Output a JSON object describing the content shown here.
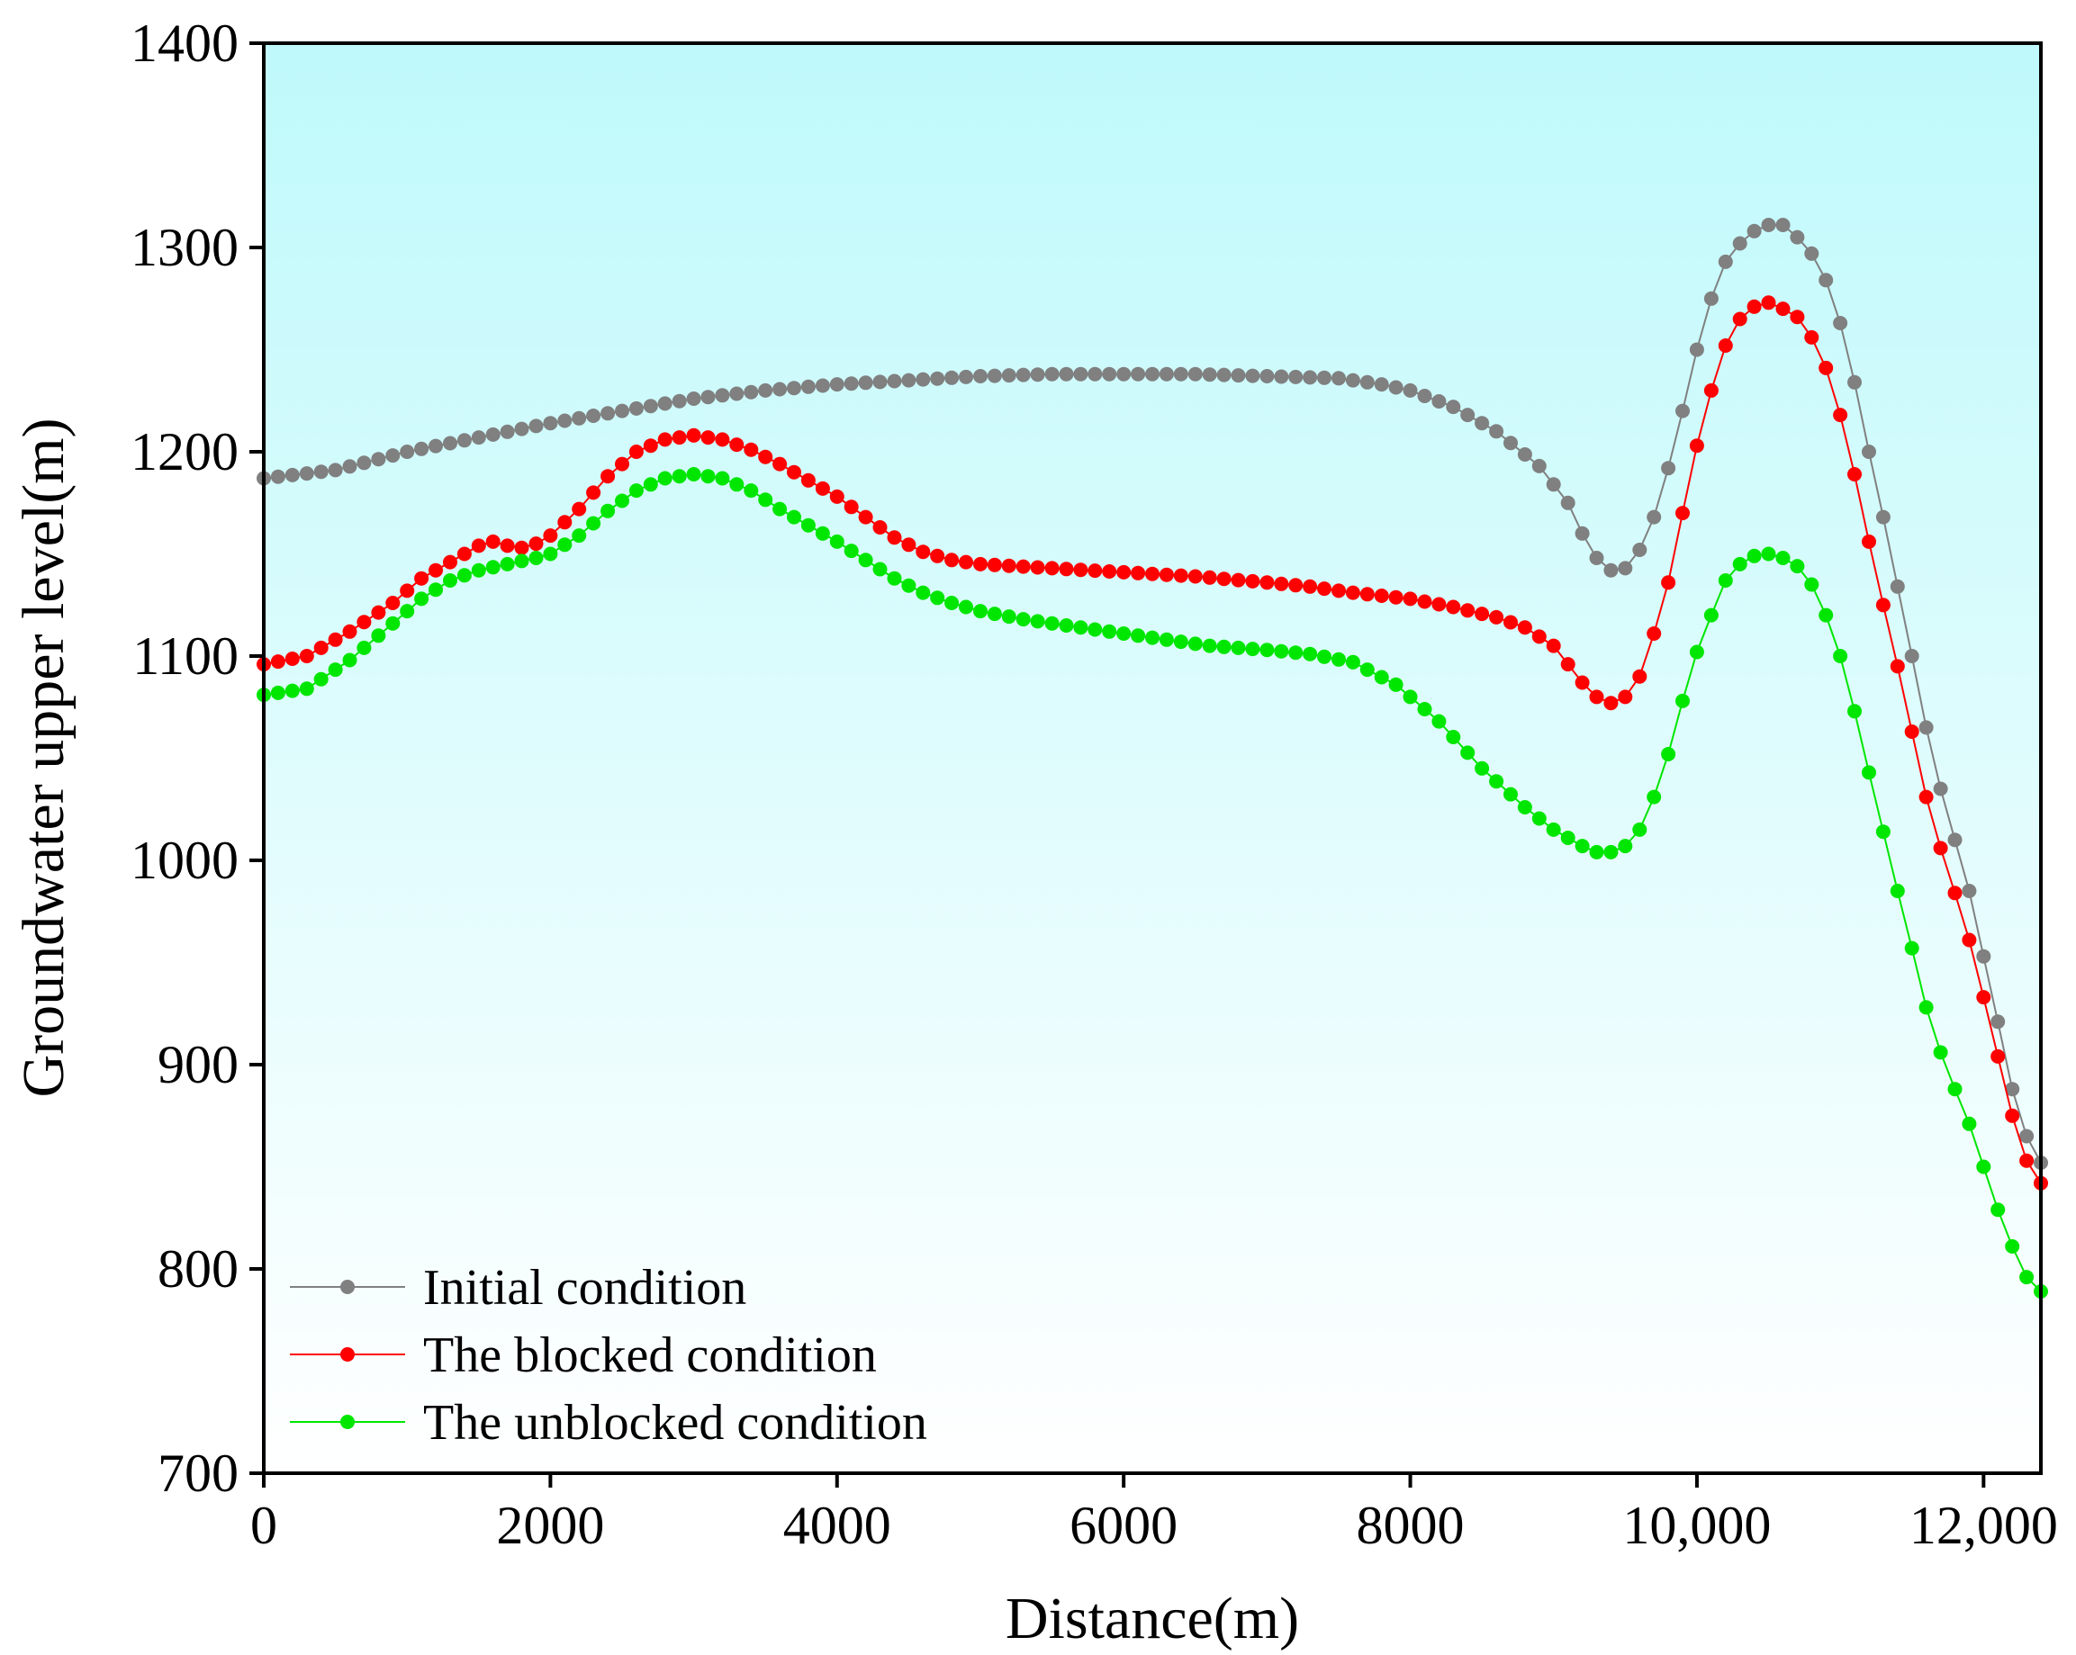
{
  "chart_data": {
    "type": "line",
    "title": "",
    "xlabel": "Distance(m)",
    "ylabel": "Groundwater upper level(m)",
    "xlim": [
      0,
      12400
    ],
    "ylim": [
      700,
      1400
    ],
    "xticks": [
      0,
      2000,
      4000,
      6000,
      8000,
      10000,
      12000
    ],
    "xtick_labels": [
      "0",
      "2000",
      "4000",
      "6000",
      "8000",
      "10,000",
      "12,000"
    ],
    "yticks": [
      700,
      800,
      900,
      1000,
      1100,
      1200,
      1300,
      1400
    ],
    "ytick_labels": [
      "700",
      "800",
      "900",
      "1000",
      "1100",
      "1200",
      "1300",
      "1400"
    ],
    "grid": false,
    "legend_position": "bottom-left",
    "background_gradient": [
      "#bff9fb",
      "#ffffff"
    ],
    "x_step": 100,
    "series": [
      {
        "name": "Initial condition",
        "color": "#808080",
        "anchors": [
          [
            0,
            1187
          ],
          [
            500,
            1191
          ],
          [
            1000,
            1200
          ],
          [
            1500,
            1207
          ],
          [
            2000,
            1214
          ],
          [
            2500,
            1220
          ],
          [
            3000,
            1226
          ],
          [
            3500,
            1230
          ],
          [
            4000,
            1233
          ],
          [
            4500,
            1235
          ],
          [
            5000,
            1237
          ],
          [
            5500,
            1238
          ],
          [
            6000,
            1238
          ],
          [
            6500,
            1238
          ],
          [
            7000,
            1237
          ],
          [
            7500,
            1236
          ],
          [
            7800,
            1233
          ],
          [
            8000,
            1230
          ],
          [
            8300,
            1222
          ],
          [
            8600,
            1210
          ],
          [
            8900,
            1193
          ],
          [
            9100,
            1175
          ],
          [
            9200,
            1160
          ],
          [
            9300,
            1148
          ],
          [
            9400,
            1142
          ],
          [
            9500,
            1143
          ],
          [
            9600,
            1152
          ],
          [
            9700,
            1168
          ],
          [
            9800,
            1192
          ],
          [
            9900,
            1220
          ],
          [
            10000,
            1250
          ],
          [
            10100,
            1275
          ],
          [
            10200,
            1293
          ],
          [
            10300,
            1302
          ],
          [
            10400,
            1308
          ],
          [
            10500,
            1311
          ],
          [
            10600,
            1311
          ],
          [
            10700,
            1305
          ],
          [
            10800,
            1297
          ],
          [
            10900,
            1284
          ],
          [
            11000,
            1263
          ],
          [
            11100,
            1234
          ],
          [
            11200,
            1200
          ],
          [
            11300,
            1168
          ],
          [
            11400,
            1134
          ],
          [
            11500,
            1100
          ],
          [
            11600,
            1065
          ],
          [
            11700,
            1035
          ],
          [
            11800,
            1010
          ],
          [
            11900,
            985
          ],
          [
            12000,
            953
          ],
          [
            12100,
            921
          ],
          [
            12200,
            888
          ],
          [
            12300,
            865
          ],
          [
            12400,
            852
          ]
        ]
      },
      {
        "name": "The blocked condition",
        "color": "#ff0000",
        "anchors": [
          [
            0,
            1096
          ],
          [
            300,
            1100
          ],
          [
            600,
            1112
          ],
          [
            900,
            1126
          ],
          [
            1100,
            1138
          ],
          [
            1300,
            1146
          ],
          [
            1500,
            1154
          ],
          [
            1600,
            1156
          ],
          [
            1700,
            1154
          ],
          [
            1800,
            1153
          ],
          [
            1900,
            1155
          ],
          [
            2000,
            1159
          ],
          [
            2200,
            1172
          ],
          [
            2400,
            1188
          ],
          [
            2600,
            1200
          ],
          [
            2800,
            1206
          ],
          [
            3000,
            1208
          ],
          [
            3200,
            1206
          ],
          [
            3400,
            1201
          ],
          [
            3600,
            1194
          ],
          [
            3800,
            1186
          ],
          [
            4000,
            1178
          ],
          [
            4200,
            1168
          ],
          [
            4400,
            1158
          ],
          [
            4600,
            1151
          ],
          [
            4800,
            1147
          ],
          [
            5000,
            1145
          ],
          [
            5500,
            1143
          ],
          [
            6000,
            1141
          ],
          [
            6500,
            1139
          ],
          [
            7000,
            1136
          ],
          [
            7300,
            1134
          ],
          [
            7600,
            1131
          ],
          [
            8000,
            1128
          ],
          [
            8300,
            1124
          ],
          [
            8600,
            1119
          ],
          [
            8800,
            1114
          ],
          [
            9000,
            1105
          ],
          [
            9100,
            1096
          ],
          [
            9200,
            1087
          ],
          [
            9300,
            1080
          ],
          [
            9400,
            1077
          ],
          [
            9500,
            1080
          ],
          [
            9600,
            1090
          ],
          [
            9700,
            1111
          ],
          [
            9800,
            1136
          ],
          [
            9900,
            1170
          ],
          [
            10000,
            1203
          ],
          [
            10100,
            1230
          ],
          [
            10200,
            1252
          ],
          [
            10300,
            1265
          ],
          [
            10400,
            1271
          ],
          [
            10500,
            1273
          ],
          [
            10600,
            1270
          ],
          [
            10700,
            1266
          ],
          [
            10800,
            1256
          ],
          [
            10900,
            1241
          ],
          [
            11000,
            1218
          ],
          [
            11100,
            1189
          ],
          [
            11200,
            1156
          ],
          [
            11300,
            1125
          ],
          [
            11400,
            1095
          ],
          [
            11500,
            1063
          ],
          [
            11600,
            1031
          ],
          [
            11700,
            1006
          ],
          [
            11800,
            984
          ],
          [
            11900,
            961
          ],
          [
            12000,
            933
          ],
          [
            12100,
            904
          ],
          [
            12200,
            875
          ],
          [
            12300,
            853
          ],
          [
            12400,
            842
          ]
        ]
      },
      {
        "name": "The unblocked condition",
        "color": "#00e600",
        "anchors": [
          [
            0,
            1081
          ],
          [
            300,
            1084
          ],
          [
            600,
            1098
          ],
          [
            900,
            1116
          ],
          [
            1100,
            1128
          ],
          [
            1300,
            1137
          ],
          [
            1500,
            1142
          ],
          [
            1700,
            1145
          ],
          [
            1900,
            1148
          ],
          [
            2000,
            1150
          ],
          [
            2200,
            1159
          ],
          [
            2400,
            1171
          ],
          [
            2600,
            1181
          ],
          [
            2800,
            1187
          ],
          [
            3000,
            1189
          ],
          [
            3200,
            1187
          ],
          [
            3400,
            1181
          ],
          [
            3600,
            1172
          ],
          [
            3800,
            1164
          ],
          [
            4000,
            1156
          ],
          [
            4200,
            1147
          ],
          [
            4400,
            1138
          ],
          [
            4600,
            1131
          ],
          [
            4800,
            1126
          ],
          [
            5000,
            1122
          ],
          [
            5300,
            1118
          ],
          [
            5600,
            1115
          ],
          [
            6000,
            1111
          ],
          [
            6300,
            1108
          ],
          [
            6600,
            1105
          ],
          [
            7000,
            1103
          ],
          [
            7300,
            1101
          ],
          [
            7600,
            1097
          ],
          [
            7900,
            1086
          ],
          [
            8200,
            1068
          ],
          [
            8500,
            1045
          ],
          [
            8800,
            1026
          ],
          [
            9000,
            1015
          ],
          [
            9200,
            1007
          ],
          [
            9300,
            1004
          ],
          [
            9400,
            1004
          ],
          [
            9500,
            1007
          ],
          [
            9600,
            1015
          ],
          [
            9700,
            1031
          ],
          [
            9800,
            1052
          ],
          [
            9900,
            1078
          ],
          [
            10000,
            1102
          ],
          [
            10100,
            1120
          ],
          [
            10200,
            1137
          ],
          [
            10300,
            1145
          ],
          [
            10400,
            1149
          ],
          [
            10500,
            1150
          ],
          [
            10600,
            1148
          ],
          [
            10700,
            1144
          ],
          [
            10800,
            1135
          ],
          [
            10900,
            1120
          ],
          [
            11000,
            1100
          ],
          [
            11100,
            1073
          ],
          [
            11200,
            1043
          ],
          [
            11300,
            1014
          ],
          [
            11400,
            985
          ],
          [
            11500,
            957
          ],
          [
            11600,
            928
          ],
          [
            11700,
            906
          ],
          [
            11800,
            888
          ],
          [
            11900,
            871
          ],
          [
            12000,
            850
          ],
          [
            12100,
            829
          ],
          [
            12200,
            811
          ],
          [
            12300,
            796
          ],
          [
            12400,
            789
          ]
        ]
      }
    ]
  }
}
